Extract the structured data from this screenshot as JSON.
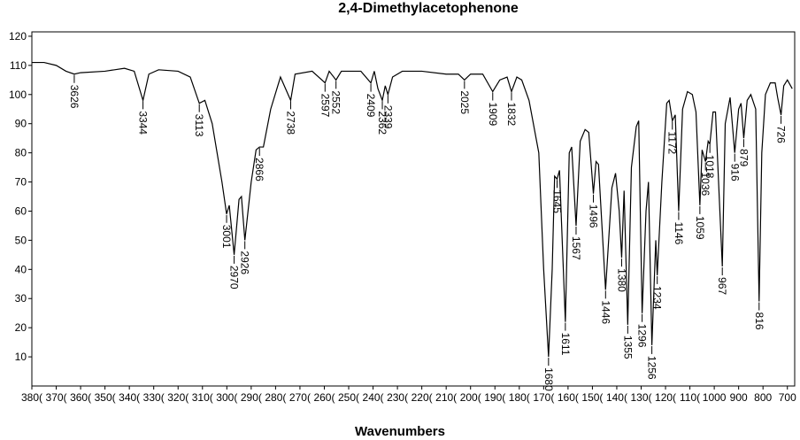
{
  "chart_data": {
    "type": "line",
    "title": "2,4-Dimethylacetophenone",
    "x_label": "Wavenumbers",
    "xlim": [
      3800,
      670
    ],
    "ylim": [
      0,
      121.5
    ],
    "xticks": [
      {
        "value": 3800,
        "label": "380("
      },
      {
        "value": 3700,
        "label": "370("
      },
      {
        "value": 3600,
        "label": "360("
      },
      {
        "value": 3500,
        "label": "350("
      },
      {
        "value": 3400,
        "label": "340("
      },
      {
        "value": 3300,
        "label": "330("
      },
      {
        "value": 3200,
        "label": "320("
      },
      {
        "value": 3100,
        "label": "310("
      },
      {
        "value": 3000,
        "label": "300("
      },
      {
        "value": 2900,
        "label": "290("
      },
      {
        "value": 2800,
        "label": "280("
      },
      {
        "value": 2700,
        "label": "270("
      },
      {
        "value": 2600,
        "label": "260("
      },
      {
        "value": 2500,
        "label": "250("
      },
      {
        "value": 2400,
        "label": "240("
      },
      {
        "value": 2300,
        "label": "230("
      },
      {
        "value": 2200,
        "label": "220("
      },
      {
        "value": 2100,
        "label": "210("
      },
      {
        "value": 2000,
        "label": "200("
      },
      {
        "value": 1900,
        "label": "190("
      },
      {
        "value": 1800,
        "label": "180("
      },
      {
        "value": 1700,
        "label": "170("
      },
      {
        "value": 1600,
        "label": "160("
      },
      {
        "value": 1500,
        "label": "150("
      },
      {
        "value": 1400,
        "label": "140("
      },
      {
        "value": 1300,
        "label": "130("
      },
      {
        "value": 1200,
        "label": "120("
      },
      {
        "value": 1100,
        "label": "110("
      },
      1000,
      900,
      800,
      700
    ],
    "yticks": [
      10,
      20,
      30,
      40,
      50,
      60,
      70,
      80,
      90,
      100,
      110,
      120
    ],
    "color": "#000000",
    "x": [
      3800,
      3750,
      3700,
      3660,
      3626,
      3600,
      3500,
      3420,
      3380,
      3344,
      3320,
      3280,
      3200,
      3150,
      3113,
      3090,
      3060,
      3040,
      3020,
      3001,
      2990,
      2970,
      2950,
      2940,
      2926,
      2900,
      2880,
      2866,
      2850,
      2820,
      2780,
      2738,
      2720,
      2650,
      2597,
      2580,
      2552,
      2530,
      2450,
      2409,
      2395,
      2380,
      2362,
      2350,
      2339,
      2320,
      2280,
      2200,
      2100,
      2050,
      2025,
      2000,
      1950,
      1909,
      1880,
      1850,
      1832,
      1810,
      1790,
      1760,
      1720,
      1700,
      1680,
      1665,
      1655,
      1645,
      1635,
      1611,
      1595,
      1585,
      1567,
      1550,
      1530,
      1515,
      1496,
      1485,
      1475,
      1446,
      1420,
      1405,
      1390,
      1380,
      1370,
      1355,
      1340,
      1320,
      1310,
      1296,
      1280,
      1270,
      1256,
      1240,
      1234,
      1215,
      1195,
      1185,
      1172,
      1160,
      1146,
      1130,
      1110,
      1090,
      1075,
      1059,
      1050,
      1036,
      1025,
      1018,
      1005,
      995,
      967,
      955,
      935,
      916,
      900,
      890,
      879,
      865,
      850,
      830,
      816,
      805,
      790,
      770,
      750,
      740,
      726,
      715,
      700,
      680
    ],
    "values": [
      111,
      111,
      110,
      108,
      107,
      107.5,
      108,
      109,
      108,
      98,
      107,
      108.5,
      108,
      106,
      97,
      98,
      90,
      80,
      70,
      59,
      62,
      45,
      64,
      65,
      50,
      70,
      81,
      82,
      82,
      95,
      106,
      98,
      107,
      108,
      104,
      108,
      105,
      108,
      108,
      104,
      108,
      102,
      98,
      103,
      100,
      106,
      108,
      108,
      107,
      107,
      105,
      107,
      107,
      101,
      105,
      106,
      101,
      106,
      105,
      98,
      80,
      40,
      10,
      40,
      72,
      71,
      74,
      22,
      80,
      82,
      55,
      84,
      88,
      87,
      66,
      77,
      76,
      33,
      68,
      73,
      60,
      44,
      67,
      21,
      75,
      89,
      91,
      25,
      60,
      70,
      14,
      50,
      38,
      70,
      97,
      98,
      91,
      93,
      60,
      95,
      101,
      100,
      94,
      62,
      81,
      77,
      84,
      83,
      94,
      94,
      41,
      90,
      99,
      80,
      95,
      97,
      85,
      98,
      100,
      95,
      29,
      80,
      100,
      104,
      104,
      99,
      93,
      103,
      105,
      102
    ],
    "peaks": [
      {
        "x": 3626,
        "y": 107
      },
      {
        "x": 3344,
        "y": 98
      },
      {
        "x": 3113,
        "y": 97
      },
      {
        "x": 3001,
        "y": 59
      },
      {
        "x": 2970,
        "y": 45
      },
      {
        "x": 2926,
        "y": 50
      },
      {
        "x": 2866,
        "y": 82
      },
      {
        "x": 2738,
        "y": 98
      },
      {
        "x": 2597,
        "y": 104
      },
      {
        "x": 2552,
        "y": 105
      },
      {
        "x": 2409,
        "y": 104
      },
      {
        "x": 2362,
        "y": 98
      },
      {
        "x": 2339,
        "y": 100
      },
      {
        "x": 2025,
        "y": 105
      },
      {
        "x": 1909,
        "y": 101
      },
      {
        "x": 1832,
        "y": 101
      },
      {
        "x": 1680,
        "y": 10
      },
      {
        "x": 1645,
        "y": 71
      },
      {
        "x": 1611,
        "y": 22
      },
      {
        "x": 1567,
        "y": 55
      },
      {
        "x": 1496,
        "y": 66
      },
      {
        "x": 1446,
        "y": 33
      },
      {
        "x": 1380,
        "y": 44
      },
      {
        "x": 1355,
        "y": 21
      },
      {
        "x": 1296,
        "y": 25
      },
      {
        "x": 1256,
        "y": 14
      },
      {
        "x": 1234,
        "y": 38
      },
      {
        "x": 1172,
        "y": 91
      },
      {
        "x": 1146,
        "y": 60
      },
      {
        "x": 1059,
        "y": 62
      },
      {
        "x": 1036,
        "y": 77
      },
      {
        "x": 1018,
        "y": 83
      },
      {
        "x": 967,
        "y": 41
      },
      {
        "x": 916,
        "y": 80
      },
      {
        "x": 879,
        "y": 85
      },
      {
        "x": 816,
        "y": 29
      },
      {
        "x": 726,
        "y": 93
      }
    ]
  }
}
